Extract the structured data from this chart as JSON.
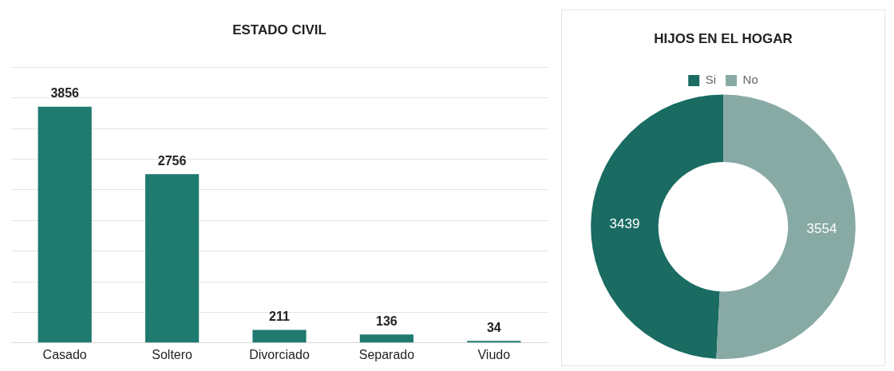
{
  "chart_data": [
    {
      "type": "bar",
      "title": "ESTADO CIVIL",
      "categories": [
        "Casado",
        "Soltero",
        "Divorciado",
        "Separado",
        "Viudo"
      ],
      "values": [
        3856,
        2756,
        211,
        136,
        34
      ],
      "color": "#1f7a70",
      "ylim": [
        0,
        4500
      ],
      "yticks": [
        {
          "value": 0,
          "label": null
        },
        {
          "value": 500,
          "label": null
        },
        {
          "value": 1000,
          "label": null
        },
        {
          "value": 1500,
          "label": null
        },
        {
          "value": 2000,
          "label": null
        },
        {
          "value": 2500,
          "label": null
        },
        {
          "value": 3000,
          "label": null
        },
        {
          "value": 3500,
          "label": null
        },
        {
          "value": 4000,
          "label": null
        },
        {
          "value": 4500,
          "label": null
        }
      ],
      "grid": "y",
      "tick_labels": "x",
      "data_labels": true
    },
    {
      "type": "donut",
      "title": "HIJOS EN EL HOGAR",
      "categories": [
        "Si",
        "No"
      ],
      "values": [
        3439,
        3554
      ],
      "colors": [
        "#1a6b62",
        "#88aaa5"
      ],
      "legend": "top",
      "data_labels": true
    }
  ]
}
